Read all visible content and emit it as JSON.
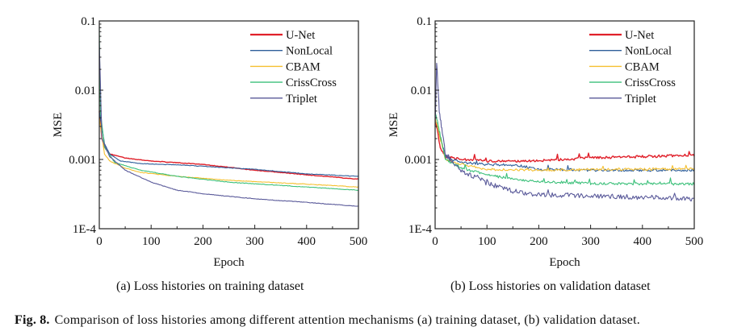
{
  "chart_data": [
    {
      "type": "line",
      "title": "(a) Loss histories on training dataset",
      "xlabel": "Epoch",
      "ylabel": "MSE",
      "xlim": [
        0,
        500
      ],
      "ylim": [
        0.0001,
        0.1
      ],
      "yscale": "log",
      "xticks": [
        "0",
        "100",
        "200",
        "300",
        "400",
        "500"
      ],
      "yticks": [
        "1E-4",
        "0.001",
        "0.01",
        "0.1"
      ],
      "legend_position": "top-right",
      "series": [
        {
          "name": "U-Net",
          "color": "#e0202a",
          "x": [
            0,
            5,
            10,
            20,
            50,
            100,
            200,
            300,
            400,
            500
          ],
          "y": [
            0.005,
            0.002,
            0.0015,
            0.0012,
            0.00105,
            0.00095,
            0.00085,
            0.0007,
            0.0006,
            0.00052
          ]
        },
        {
          "name": "NonLocal",
          "color": "#2e5e9a",
          "x": [
            0,
            10,
            20,
            40,
            80,
            160,
            300,
            400,
            500
          ],
          "y": [
            0.005,
            0.0017,
            0.0012,
            0.00095,
            0.00087,
            0.00083,
            0.00072,
            0.00062,
            0.00057
          ]
        },
        {
          "name": "CBAM",
          "color": "#f5c030",
          "x": [
            0,
            10,
            20,
            50,
            80,
            150,
            250,
            400,
            500
          ],
          "y": [
            0.004,
            0.0012,
            0.00095,
            0.00075,
            0.00065,
            0.00057,
            0.0005,
            0.00044,
            0.0004
          ]
        },
        {
          "name": "CrissCross",
          "color": "#3cc07a",
          "x": [
            0,
            2,
            10,
            30,
            80,
            150,
            250,
            400,
            500
          ],
          "y": [
            0.08,
            0.005,
            0.0015,
            0.0009,
            0.0007,
            0.00057,
            0.00047,
            0.0004,
            0.00036
          ]
        },
        {
          "name": "Triplet",
          "color": "#5a5a9a",
          "x": [
            0,
            5,
            20,
            50,
            100,
            150,
            200,
            300,
            400,
            500
          ],
          "y": [
            0.05,
            0.002,
            0.0011,
            0.0007,
            0.00047,
            0.00036,
            0.00032,
            0.00027,
            0.00024,
            0.00021
          ]
        }
      ]
    },
    {
      "type": "line",
      "title": "(b) Loss histories on validation dataset",
      "xlabel": "Epoch",
      "ylabel": "MSE",
      "xlim": [
        0,
        500
      ],
      "ylim": [
        0.0001,
        0.1
      ],
      "yscale": "log",
      "xticks": [
        "0",
        "100",
        "200",
        "300",
        "400",
        "500"
      ],
      "yticks": [
        "1E-4",
        "0.001",
        "0.01",
        "0.1"
      ],
      "legend_position": "top-right",
      "series": [
        {
          "name": "U-Net",
          "color": "#e0202a",
          "x": [
            0,
            10,
            20,
            50,
            100,
            150,
            200,
            300,
            400,
            500
          ],
          "y": [
            0.004,
            0.0015,
            0.0011,
            0.001,
            0.00095,
            0.00093,
            0.00096,
            0.00105,
            0.0011,
            0.00115
          ]
        },
        {
          "name": "NonLocal",
          "color": "#2e5e9a",
          "x": [
            0,
            20,
            50,
            100,
            160,
            200,
            300,
            500
          ],
          "y": [
            0.004,
            0.0011,
            0.0009,
            0.00085,
            0.00082,
            0.00072,
            0.0007,
            0.0007
          ]
        },
        {
          "name": "CBAM",
          "color": "#f5c030",
          "x": [
            0,
            20,
            50,
            100,
            200,
            300,
            500
          ],
          "y": [
            0.004,
            0.001,
            0.00085,
            0.00072,
            0.0007,
            0.00072,
            0.00073
          ]
        },
        {
          "name": "CrissCross",
          "color": "#3cc07a",
          "x": [
            0,
            20,
            50,
            100,
            150,
            200,
            300,
            500
          ],
          "y": [
            0.005,
            0.001,
            0.00075,
            0.0006,
            0.00052,
            0.00048,
            0.00045,
            0.00044
          ]
        },
        {
          "name": "Triplet",
          "color": "#5a5a9a",
          "x": [
            0,
            3,
            8,
            20,
            50,
            100,
            150,
            200,
            300,
            500
          ],
          "y": [
            0.003,
            0.025,
            0.005,
            0.0012,
            0.0007,
            0.00045,
            0.00035,
            0.00031,
            0.0003,
            0.00027
          ]
        }
      ]
    }
  ],
  "figure_caption": {
    "label": "Fig. 8.",
    "text": "Comparison of loss histories among different attention mechanisms (a) training dataset, (b) validation dataset."
  }
}
